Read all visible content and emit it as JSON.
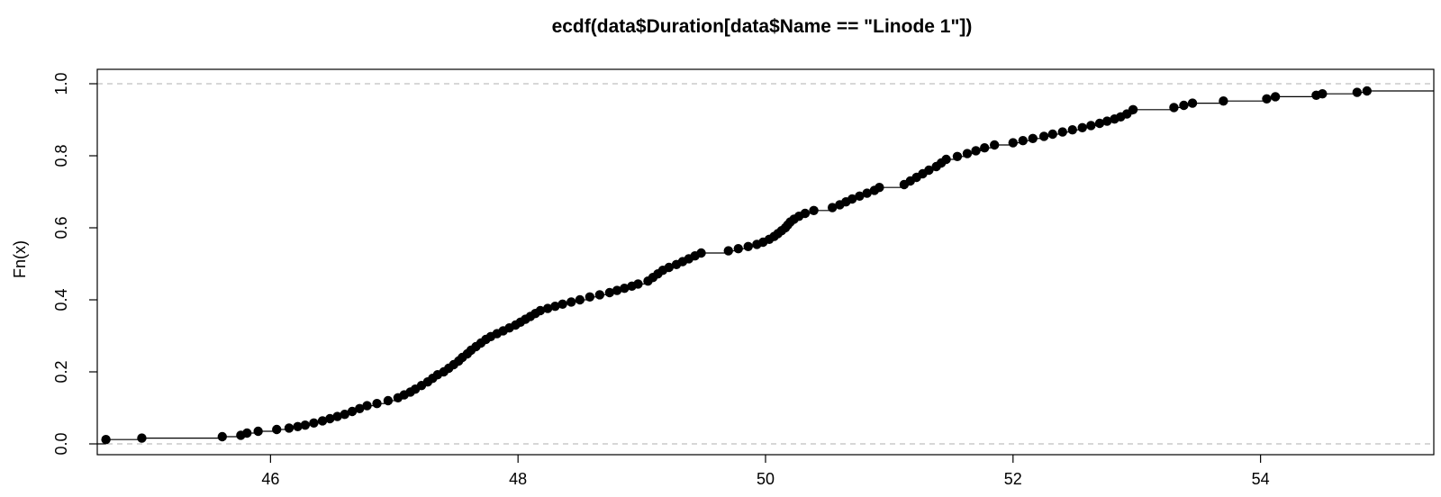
{
  "chart_data": {
    "type": "scatter",
    "title": "ecdf(data$Duration[data$Name == \"Linode 1\"])",
    "xlabel": "",
    "ylabel": "Fn(x)",
    "xlim": [
      44.6,
      55.4
    ],
    "ylim": [
      -0.03,
      1.04
    ],
    "x_ticks": [
      "46",
      "48",
      "50",
      "52",
      "54"
    ],
    "y_ticks": [
      "0.0",
      "0.2",
      "0.4",
      "0.6",
      "0.8",
      "1.0"
    ],
    "reference_lines_y": [
      0,
      1
    ],
    "grid": false,
    "series": [
      {
        "style": "step-with-points",
        "points": [
          [
            44.67,
            0.012
          ],
          [
            44.96,
            0.016
          ],
          [
            45.61,
            0.02
          ],
          [
            45.76,
            0.024
          ],
          [
            45.81,
            0.03
          ],
          [
            45.9,
            0.035
          ],
          [
            46.05,
            0.04
          ],
          [
            46.15,
            0.044
          ],
          [
            46.22,
            0.048
          ],
          [
            46.28,
            0.052
          ],
          [
            46.35,
            0.058
          ],
          [
            46.42,
            0.064
          ],
          [
            46.48,
            0.07
          ],
          [
            46.54,
            0.076
          ],
          [
            46.6,
            0.082
          ],
          [
            46.66,
            0.09
          ],
          [
            46.72,
            0.098
          ],
          [
            46.78,
            0.106
          ],
          [
            46.86,
            0.112
          ],
          [
            46.95,
            0.12
          ],
          [
            47.03,
            0.128
          ],
          [
            47.08,
            0.136
          ],
          [
            47.13,
            0.144
          ],
          [
            47.17,
            0.152
          ],
          [
            47.22,
            0.162
          ],
          [
            47.27,
            0.172
          ],
          [
            47.31,
            0.182
          ],
          [
            47.35,
            0.192
          ],
          [
            47.4,
            0.2
          ],
          [
            47.44,
            0.21
          ],
          [
            47.48,
            0.22
          ],
          [
            47.52,
            0.23
          ],
          [
            47.55,
            0.24
          ],
          [
            47.59,
            0.25
          ],
          [
            47.62,
            0.26
          ],
          [
            47.66,
            0.27
          ],
          [
            47.7,
            0.28
          ],
          [
            47.74,
            0.29
          ],
          [
            47.78,
            0.298
          ],
          [
            47.83,
            0.306
          ],
          [
            47.88,
            0.314
          ],
          [
            47.93,
            0.322
          ],
          [
            47.98,
            0.33
          ],
          [
            48.02,
            0.338
          ],
          [
            48.06,
            0.346
          ],
          [
            48.1,
            0.354
          ],
          [
            48.14,
            0.362
          ],
          [
            48.18,
            0.37
          ],
          [
            48.24,
            0.376
          ],
          [
            48.3,
            0.382
          ],
          [
            48.36,
            0.388
          ],
          [
            48.43,
            0.394
          ],
          [
            48.5,
            0.4
          ],
          [
            48.58,
            0.408
          ],
          [
            48.66,
            0.414
          ],
          [
            48.74,
            0.42
          ],
          [
            48.8,
            0.426
          ],
          [
            48.86,
            0.432
          ],
          [
            48.92,
            0.438
          ],
          [
            48.97,
            0.444
          ],
          [
            49.05,
            0.452
          ],
          [
            49.09,
            0.462
          ],
          [
            49.13,
            0.472
          ],
          [
            49.17,
            0.482
          ],
          [
            49.22,
            0.49
          ],
          [
            49.28,
            0.498
          ],
          [
            49.33,
            0.506
          ],
          [
            49.38,
            0.514
          ],
          [
            49.43,
            0.522
          ],
          [
            49.48,
            0.53
          ],
          [
            49.7,
            0.536
          ],
          [
            49.78,
            0.542
          ],
          [
            49.86,
            0.548
          ],
          [
            49.93,
            0.554
          ],
          [
            49.98,
            0.56
          ],
          [
            50.03,
            0.568
          ],
          [
            50.07,
            0.576
          ],
          [
            50.1,
            0.584
          ],
          [
            50.13,
            0.592
          ],
          [
            50.16,
            0.6
          ],
          [
            50.18,
            0.608
          ],
          [
            50.2,
            0.616
          ],
          [
            50.23,
            0.624
          ],
          [
            50.27,
            0.632
          ],
          [
            50.32,
            0.64
          ],
          [
            50.39,
            0.648
          ],
          [
            50.54,
            0.656
          ],
          [
            50.6,
            0.664
          ],
          [
            50.65,
            0.672
          ],
          [
            50.7,
            0.68
          ],
          [
            50.76,
            0.688
          ],
          [
            50.82,
            0.696
          ],
          [
            50.88,
            0.704
          ],
          [
            50.92,
            0.712
          ],
          [
            51.12,
            0.72
          ],
          [
            51.17,
            0.73
          ],
          [
            51.22,
            0.74
          ],
          [
            51.27,
            0.75
          ],
          [
            51.32,
            0.76
          ],
          [
            51.38,
            0.77
          ],
          [
            51.42,
            0.78
          ],
          [
            51.46,
            0.79
          ],
          [
            51.55,
            0.798
          ],
          [
            51.63,
            0.806
          ],
          [
            51.7,
            0.814
          ],
          [
            51.77,
            0.822
          ],
          [
            51.85,
            0.83
          ],
          [
            52.0,
            0.836
          ],
          [
            52.08,
            0.842
          ],
          [
            52.16,
            0.848
          ],
          [
            52.25,
            0.854
          ],
          [
            52.32,
            0.86
          ],
          [
            52.4,
            0.866
          ],
          [
            52.48,
            0.872
          ],
          [
            52.56,
            0.878
          ],
          [
            52.63,
            0.884
          ],
          [
            52.7,
            0.89
          ],
          [
            52.76,
            0.896
          ],
          [
            52.82,
            0.902
          ],
          [
            52.87,
            0.908
          ],
          [
            52.92,
            0.916
          ],
          [
            52.97,
            0.928
          ],
          [
            53.3,
            0.934
          ],
          [
            53.38,
            0.94
          ],
          [
            53.45,
            0.946
          ],
          [
            53.7,
            0.952
          ],
          [
            54.05,
            0.958
          ],
          [
            54.12,
            0.964
          ],
          [
            54.45,
            0.968
          ],
          [
            54.5,
            0.972
          ],
          [
            54.78,
            0.976
          ],
          [
            54.86,
            0.98
          ]
        ]
      }
    ]
  }
}
